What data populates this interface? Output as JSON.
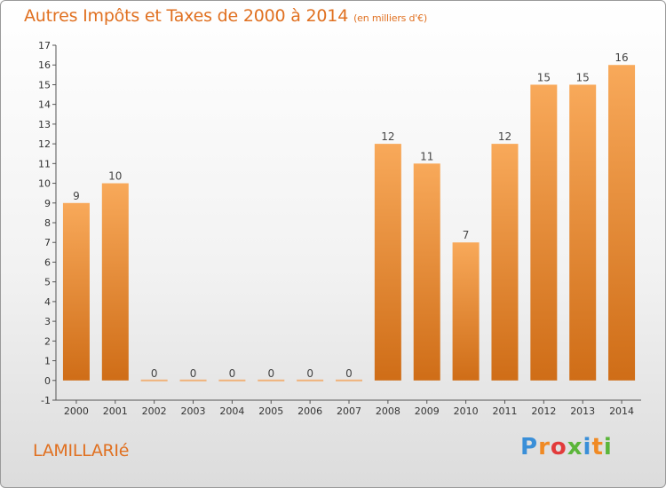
{
  "header": {
    "title": "Autres Impôts et Taxes de 2000 à 2014",
    "subtitle": "(en milliers d'€)"
  },
  "commune_name": "LAMILLARIé",
  "logo": {
    "text": "Proxiti",
    "letters": [
      "P",
      "r",
      "o",
      "x",
      "i",
      "t",
      "i"
    ],
    "colors": [
      "#3a8fd8",
      "#f08a24",
      "#e23b3b",
      "#5bb53a",
      "#3a8fd8",
      "#f08a24",
      "#5bb53a"
    ]
  },
  "colors": {
    "bar_light": "#f8a95a",
    "bar_dark": "#cf6d17",
    "zero_bar": "#f0b27a",
    "accent": "#e07020"
  },
  "chart_data": {
    "type": "bar",
    "title": "Autres Impôts et Taxes de 2000 à 2014",
    "subtitle": "(en milliers d'€)",
    "xlabel": "",
    "ylabel": "",
    "categories": [
      "2000",
      "2001",
      "2002",
      "2003",
      "2004",
      "2005",
      "2006",
      "2007",
      "2008",
      "2009",
      "2010",
      "2011",
      "2012",
      "2013",
      "2014"
    ],
    "values": [
      9,
      10,
      0,
      0,
      0,
      0,
      0,
      0,
      12,
      11,
      7,
      12,
      15,
      15,
      16
    ],
    "value_labels": [
      "9",
      "10",
      "0",
      "0",
      "0",
      "0",
      "0",
      "0",
      "12",
      "11",
      "7",
      "12",
      "15",
      "15",
      "16"
    ],
    "ylim": [
      -1,
      17
    ],
    "yticks": [
      "-1",
      "0",
      "1",
      "2",
      "3",
      "4",
      "5",
      "6",
      "7",
      "8",
      "9",
      "10",
      "11",
      "12",
      "13",
      "14",
      "15",
      "16",
      "17"
    ],
    "grid": false,
    "legend": "none"
  }
}
